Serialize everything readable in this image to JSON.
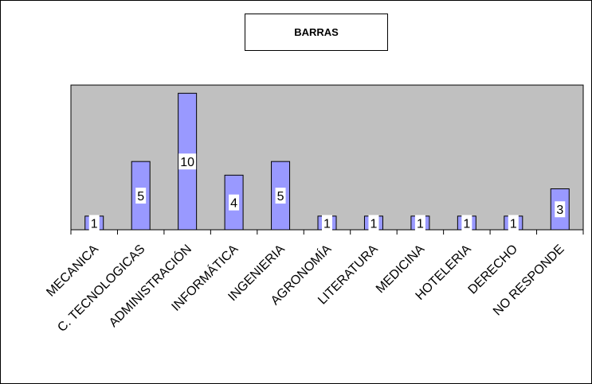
{
  "chart_data": {
    "type": "bar",
    "title": "BARRAS",
    "categories": [
      "MECANICA",
      "C. TECNOLOGICAS",
      "ADMINISTRACIÓN",
      "INFORMÁTICA",
      "INGENIERIA",
      "AGRONOMÍA",
      "LITERATURA",
      "MEDICINA",
      "HOTELERIA",
      "DERECHO",
      "NO RESPONDE"
    ],
    "values": [
      1,
      5,
      10,
      4,
      5,
      1,
      1,
      1,
      1,
      1,
      3
    ],
    "ylim": [
      0,
      10.6
    ],
    "grid": false,
    "legend": "none",
    "colors": {
      "plot_background": "#c0c0c0",
      "bar_fill": "#9999ff",
      "bar_stroke": "#000000"
    }
  }
}
